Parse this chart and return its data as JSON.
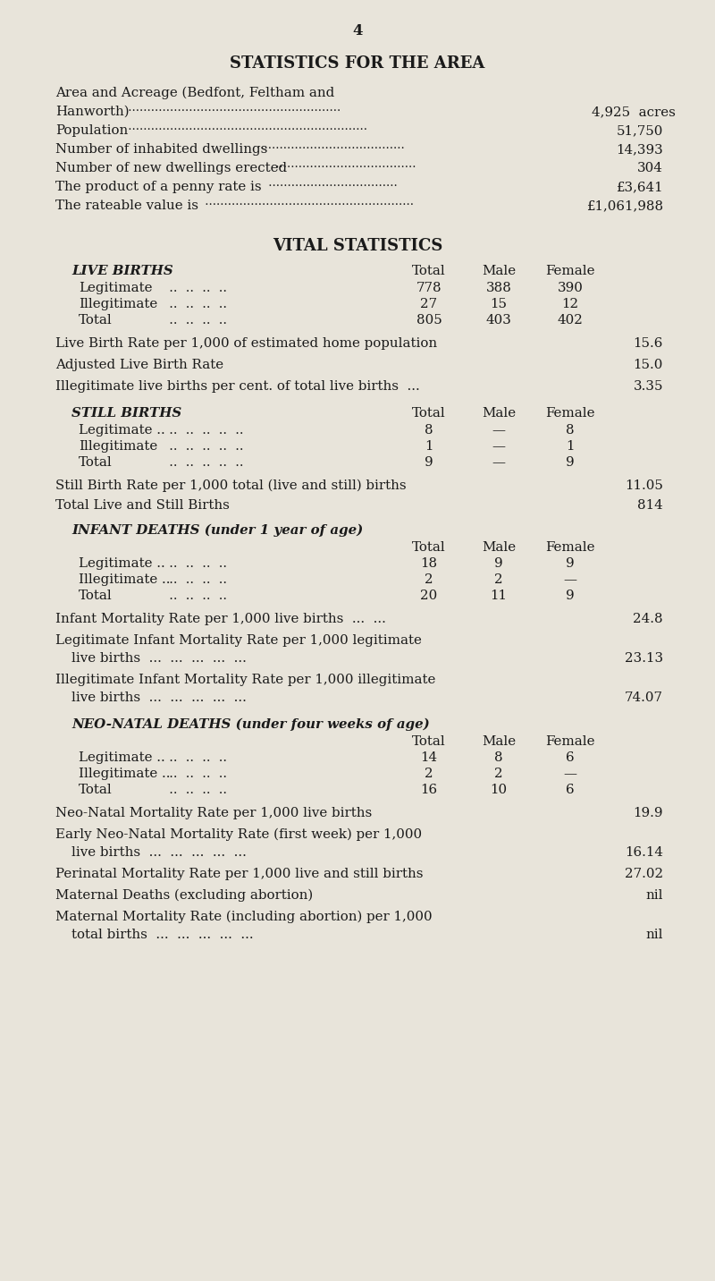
{
  "page_number": "4",
  "bg_color": "#e8e4da",
  "text_color": "#1a1a1a",
  "section1_title": "STATISTICS FOR THE AREA",
  "section2_title": "VITAL STATISTICS",
  "live_births_header": "LIVE BIRTHS",
  "live_births_rows": [
    [
      "Legitimate",
      "778",
      "388",
      "390"
    ],
    [
      "Illegitimate",
      "27",
      "15",
      "12"
    ],
    [
      "Total",
      "805",
      "403",
      "402"
    ]
  ],
  "live_birth_stats": [
    [
      "Live Birth Rate per 1,000 of estimated home population",
      "15.6"
    ],
    [
      "Adjusted Live Birth Rate",
      "15.0"
    ],
    [
      "Illegitimate live births per cent. of total live births  ...",
      "3.35"
    ]
  ],
  "still_births_header": "STILL BIRTHS",
  "still_births_rows": [
    [
      "Legitimate ..",
      "8",
      "—",
      "8"
    ],
    [
      "Illegitimate",
      "1",
      "—",
      "1"
    ],
    [
      "Total",
      "9",
      "—",
      "9"
    ]
  ],
  "still_birth_stats": [
    [
      "Still Birth Rate per 1,000 total (live and still) births",
      "11.05"
    ],
    [
      "Total Live and Still Births",
      "814"
    ]
  ],
  "infant_deaths_header": "INFANT DEATHS (under 1 year of age)",
  "infant_deaths_rows": [
    [
      "Legitimate ..",
      "18",
      "9",
      "9"
    ],
    [
      "Illegitimate ..",
      "2",
      "2",
      "—"
    ],
    [
      "Total",
      "20",
      "11",
      "9"
    ]
  ],
  "infant_death_stats": [
    [
      "Infant Mortality Rate per 1,000 live births  ...  ...",
      "24.8",
      false
    ],
    [
      "Legitimate Infant Mortality Rate per 1,000 legitimate",
      "23.13",
      true
    ],
    [
      "Illegitimate Infant Mortality Rate per 1,000 illegitimate",
      "74.07",
      true
    ]
  ],
  "infant_death_continuations": [
    "live births  ...  ...  ...  ...  ...",
    "live births  ...  ...  ...  ...  ..."
  ],
  "neo_natal_header": "NEO-NATAL DEATHS (under four weeks of age)",
  "neo_natal_rows": [
    [
      "Legitimate ..",
      "14",
      "8",
      "6"
    ],
    [
      "Illegitimate ..",
      "2",
      "2",
      "—"
    ],
    [
      "Total",
      "16",
      "10",
      "6"
    ]
  ],
  "neo_natal_stats": [
    [
      "Neo-Natal Mortality Rate per 1,000 live births",
      "19.9",
      false
    ],
    [
      "Early Neo-Natal Mortality Rate (first week) per 1,000",
      "16.14",
      true
    ],
    [
      "Perinatal Mortality Rate per 1,000 live and still births",
      "27.02",
      false
    ],
    [
      "Maternal Deaths (excluding abortion)",
      "nil",
      false
    ],
    [
      "Maternal Mortality Rate (including abortion) per 1,000",
      "nil",
      true
    ]
  ],
  "neo_natal_continuations": [
    "live births  ...  ...  ...  ...  ...",
    "total births  ...  ...  ...  ...  ..."
  ]
}
